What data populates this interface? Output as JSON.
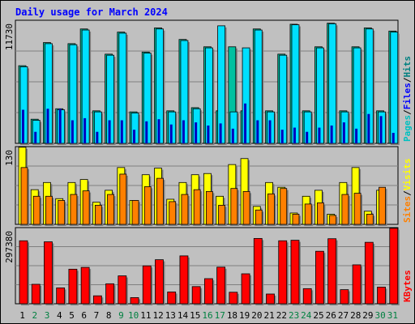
{
  "title": "Daily usage for March 2024",
  "colors": {
    "hits": "#008080",
    "files": "#0000ff",
    "pages": "#00c0c0",
    "visits": "#ffff00",
    "sites": "#ff8000",
    "kbytes": "#ff0000",
    "weekday_label": "#000000",
    "weekend_label": "#008040",
    "hits_bar": "#00c0a0",
    "files_bar": "#00e0ff",
    "pages_bar": "#0000c0",
    "visits_bar": "#ffff00",
    "sites_bar": "#ff8000",
    "kbytes_bar": "#ff0000"
  },
  "chart_data": [
    {
      "type": "bar",
      "name": "hits-files-pages",
      "ymax_label": "11730",
      "ylim": [
        0,
        11730
      ],
      "legend": [
        "Pages",
        "Files",
        "Hits"
      ],
      "categories": [
        "1",
        "2",
        "3",
        "4",
        "5",
        "6",
        "7",
        "8",
        "9",
        "10",
        "11",
        "12",
        "13",
        "14",
        "15",
        "16",
        "17",
        "18",
        "19",
        "20",
        "21",
        "22",
        "23",
        "24",
        "25",
        "26",
        "27",
        "28",
        "29",
        "30",
        "31"
      ],
      "weekend": [
        "2",
        "3",
        "9",
        "10",
        "16",
        "17",
        "23",
        "24",
        "30",
        "31"
      ],
      "series": [
        {
          "name": "Hits",
          "values": [
            7400,
            2300,
            9600,
            3300,
            9500,
            10900,
            3100,
            8500,
            10600,
            3000,
            8700,
            11000,
            3100,
            9900,
            3400,
            9200,
            3100,
            9200,
            3100,
            10900,
            3100,
            8500,
            11350,
            3100,
            9200,
            11450,
            3100,
            9200,
            11000,
            3100,
            10700
          ]
        },
        {
          "name": "Files",
          "values": [
            7300,
            2200,
            9500,
            3200,
            9400,
            10800,
            3000,
            8400,
            10500,
            2900,
            8600,
            10900,
            3000,
            9800,
            3300,
            9100,
            11200,
            3000,
            9100,
            10800,
            3000,
            8400,
            11300,
            3000,
            9100,
            11400,
            3000,
            9100,
            10900,
            3000,
            10600
          ]
        },
        {
          "name": "Pages",
          "values": [
            3200,
            1100,
            3300,
            3300,
            2200,
            2400,
            1100,
            2200,
            2200,
            1300,
            2100,
            2300,
            1800,
            2200,
            2000,
            1700,
            1900,
            1400,
            3800,
            2200,
            2200,
            1300,
            1500,
            1100,
            1500,
            1700,
            2000,
            1400,
            2800,
            2600,
            1000
          ]
        }
      ]
    },
    {
      "type": "bar",
      "name": "visits-sites",
      "ymax_label": "130",
      "ylim": [
        0,
        130
      ],
      "legend": [
        "Sites",
        "Visits"
      ],
      "categories": [
        "1",
        "2",
        "3",
        "4",
        "5",
        "6",
        "7",
        "8",
        "9",
        "10",
        "11",
        "12",
        "13",
        "14",
        "15",
        "16",
        "17",
        "18",
        "19",
        "20",
        "21",
        "22",
        "23",
        "24",
        "25",
        "26",
        "27",
        "28",
        "29",
        "30",
        "31"
      ],
      "series": [
        {
          "name": "Visits",
          "values": [
            129,
            58,
            70,
            43,
            70,
            75,
            37,
            57,
            95,
            40,
            83,
            94,
            42,
            70,
            83,
            85,
            47,
            100,
            110,
            30,
            70,
            62,
            19,
            47,
            57,
            17,
            70,
            95,
            22,
            57,
            0
          ]
        },
        {
          "name": "Sites",
          "values": [
            95,
            47,
            47,
            40,
            50,
            56,
            32,
            50,
            84,
            40,
            63,
            77,
            38,
            50,
            58,
            55,
            32,
            60,
            55,
            24,
            51,
            60,
            17,
            34,
            36,
            15,
            50,
            52,
            17,
            62,
            0
          ]
        }
      ]
    },
    {
      "type": "bar",
      "name": "kbytes",
      "ymax_label": "297380",
      "ylim": [
        0,
        297380
      ],
      "legend": [
        "KBytes"
      ],
      "categories": [
        "1",
        "2",
        "3",
        "4",
        "5",
        "6",
        "7",
        "8",
        "9",
        "10",
        "11",
        "12",
        "13",
        "14",
        "15",
        "16",
        "17",
        "18",
        "19",
        "20",
        "21",
        "22",
        "23",
        "24",
        "25",
        "26",
        "27",
        "28",
        "29",
        "30",
        "31"
      ],
      "series": [
        {
          "name": "KBytes",
          "values": [
            246000,
            76000,
            242000,
            62000,
            135000,
            142000,
            31000,
            78000,
            109000,
            24000,
            148000,
            172000,
            46000,
            187000,
            67000,
            98000,
            143000,
            45000,
            117000,
            255000,
            38000,
            246000,
            248000,
            59000,
            205000,
            254000,
            55000,
            152000,
            240000,
            65000,
            295000
          ]
        }
      ]
    }
  ]
}
